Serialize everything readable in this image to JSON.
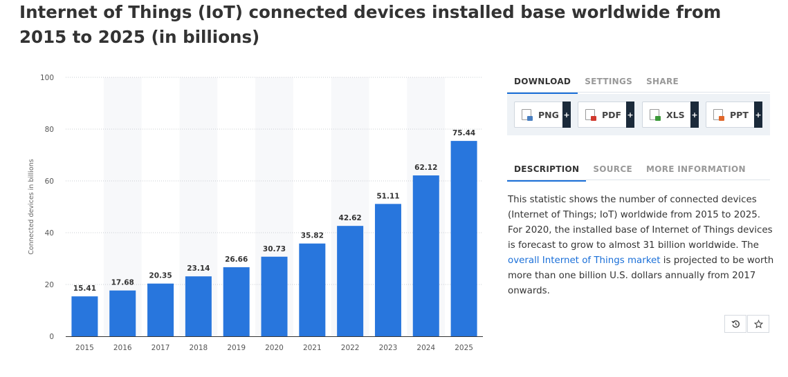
{
  "title": "Internet of Things (IoT) connected devices installed base worldwide from 2015 to 2025 (in billions)",
  "chart_data": {
    "type": "bar",
    "categories": [
      "2015",
      "2016",
      "2017",
      "2018",
      "2019",
      "2020",
      "2021",
      "2022",
      "2023",
      "2024",
      "2025"
    ],
    "values": [
      15.41,
      17.68,
      20.35,
      23.14,
      26.66,
      30.73,
      35.82,
      42.62,
      51.11,
      62.12,
      75.44
    ],
    "data_labels": [
      "15.41",
      "17.68",
      "20.35",
      "23.14",
      "26.66",
      "30.73",
      "35.82",
      "42.62",
      "51.11",
      "62.12",
      "75.44"
    ],
    "xlabel": "",
    "ylabel": "Connected devices in billions",
    "ylim": [
      0,
      100
    ],
    "yticks": [
      0,
      20,
      40,
      60,
      80,
      100
    ],
    "ytick_labels": [
      "0",
      "20",
      "40",
      "60",
      "80",
      "100"
    ],
    "grid": true,
    "bar_color": "#2876dd"
  },
  "download_tabs": [
    {
      "label": "DOWNLOAD",
      "active": true
    },
    {
      "label": "SETTINGS",
      "active": false
    },
    {
      "label": "SHARE",
      "active": false
    }
  ],
  "download_buttons": [
    {
      "label": "PNG",
      "icon": "png-file-icon",
      "plus": "+",
      "badge_color": "#4a7fc0"
    },
    {
      "label": "PDF",
      "icon": "pdf-file-icon",
      "plus": "+",
      "badge_color": "#d0392e"
    },
    {
      "label": "XLS",
      "icon": "xls-file-icon",
      "plus": "+",
      "badge_color": "#3d9a3a"
    },
    {
      "label": "PPT",
      "icon": "ppt-file-icon",
      "plus": "+",
      "badge_color": "#e0662a"
    }
  ],
  "info_tabs": [
    {
      "label": "DESCRIPTION",
      "active": true
    },
    {
      "label": "SOURCE",
      "active": false
    },
    {
      "label": "MORE INFORMATION",
      "active": false
    }
  ],
  "description": {
    "text_before": "This statistic shows the number of connected devices (Internet of Things; IoT) worldwide from 2015 to 2025. For 2020, the installed base of Internet of Things devices is forecast to grow to almost 31 billion worldwide. The ",
    "link_text": "overall Internet of Things market",
    "text_after": " is projected to be worth more than one billion U.S. dollars annually from 2017 onwards."
  },
  "actions": {
    "history_icon": "history-icon",
    "star_icon": "star-icon"
  },
  "colors": {
    "accent": "#1a6fd8",
    "bar": "#2876dd",
    "plus_bg": "#1b2a3a"
  }
}
